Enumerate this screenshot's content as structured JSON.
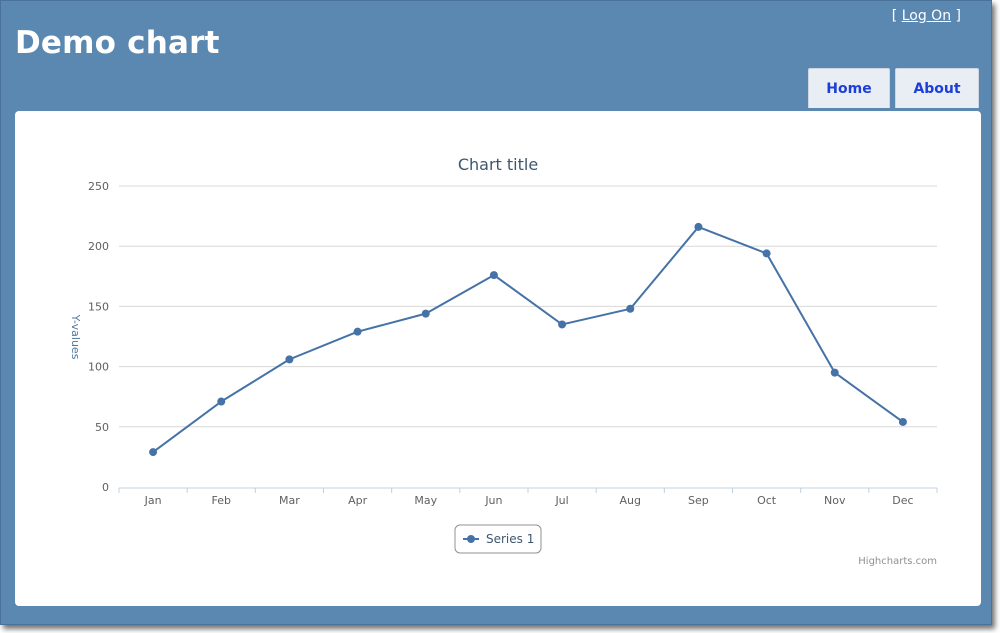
{
  "header": {
    "app_title": "Demo chart",
    "logon_open": "[",
    "logon_label": "Log On",
    "logon_close": "]"
  },
  "nav": {
    "home_label": "Home",
    "about_label": "About"
  },
  "colors": {
    "frame_bg": "#5b88b1",
    "series": "#4572a7",
    "nav_text": "#1d3fd8"
  },
  "chart_data": {
    "type": "line",
    "title": "Chart title",
    "ylabel": "Y-values",
    "xlabel": "",
    "categories": [
      "Jan",
      "Feb",
      "Mar",
      "Apr",
      "May",
      "Jun",
      "Jul",
      "Aug",
      "Sep",
      "Oct",
      "Nov",
      "Dec"
    ],
    "series": [
      {
        "name": "Series 1",
        "values": [
          29,
          71,
          106,
          129,
          144,
          176,
          135,
          148,
          216,
          194,
          95,
          54
        ]
      }
    ],
    "ylim": [
      0,
      250
    ],
    "yticks": [
      0,
      50,
      100,
      150,
      200,
      250
    ],
    "grid": true,
    "legend_position": "bottom-center",
    "credit": "Highcharts.com"
  }
}
